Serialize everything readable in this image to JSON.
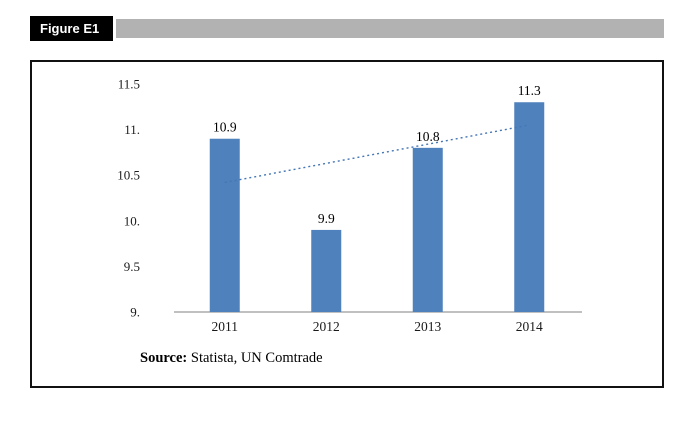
{
  "figure_label": "Figure E1",
  "source": {
    "prefix": "Source:",
    "text": " Statista, UN Comtrade"
  },
  "chart_data": {
    "type": "bar",
    "title": "",
    "categories": [
      "2011",
      "2012",
      "2013",
      "2014"
    ],
    "values": [
      10.9,
      9.9,
      10.8,
      11.3
    ],
    "data_labels": [
      "10.9",
      "9.9",
      "10.8",
      "11.3"
    ],
    "y_ticks": [
      {
        "value": 9,
        "label": "9."
      },
      {
        "value": 9.5,
        "label": "9.5"
      },
      {
        "value": 10,
        "label": "10."
      },
      {
        "value": 10.5,
        "label": "10.5"
      },
      {
        "value": 11,
        "label": "11."
      },
      {
        "value": 11.5,
        "label": "11.5"
      }
    ],
    "ylim": [
      9,
      11.5
    ],
    "bar_color": "#4f81bd",
    "axis_color": "#808080",
    "grid": false,
    "legend": false,
    "trendline": {
      "start_value": 10.42,
      "end_value": 11.05,
      "color": "#4576b5",
      "style": "dotted"
    }
  }
}
